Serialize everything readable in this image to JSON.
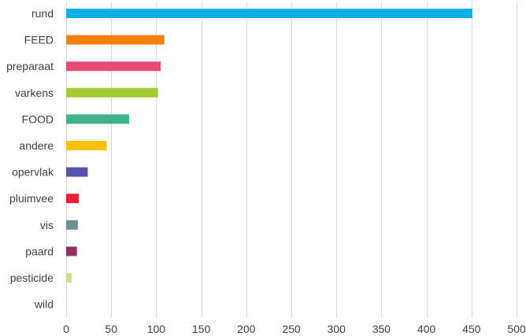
{
  "chart_data": {
    "type": "bar",
    "orientation": "horizontal",
    "categories": [
      "rund",
      "FEED",
      "preparaat",
      "varkens",
      "FOOD",
      "andere",
      "opervlak",
      "pluimvee",
      "vis",
      "paard",
      "pesticide",
      "wild"
    ],
    "values": [
      451,
      109,
      105,
      102,
      70,
      45,
      24,
      14,
      13,
      12,
      6,
      0
    ],
    "colors": [
      "#0fb0ea",
      "#f57f0f",
      "#ec4a76",
      "#a5cb34",
      "#3db28b",
      "#fec107",
      "#5752ac",
      "#ec1e37",
      "#6d9191",
      "#922f62",
      "#c5e18d",
      "#999999"
    ],
    "xlim": [
      0,
      500
    ],
    "xticks": [
      0,
      50,
      100,
      150,
      200,
      250,
      300,
      350,
      400,
      450,
      500
    ],
    "grid": true,
    "title": "",
    "xlabel": "",
    "ylabel": ""
  }
}
